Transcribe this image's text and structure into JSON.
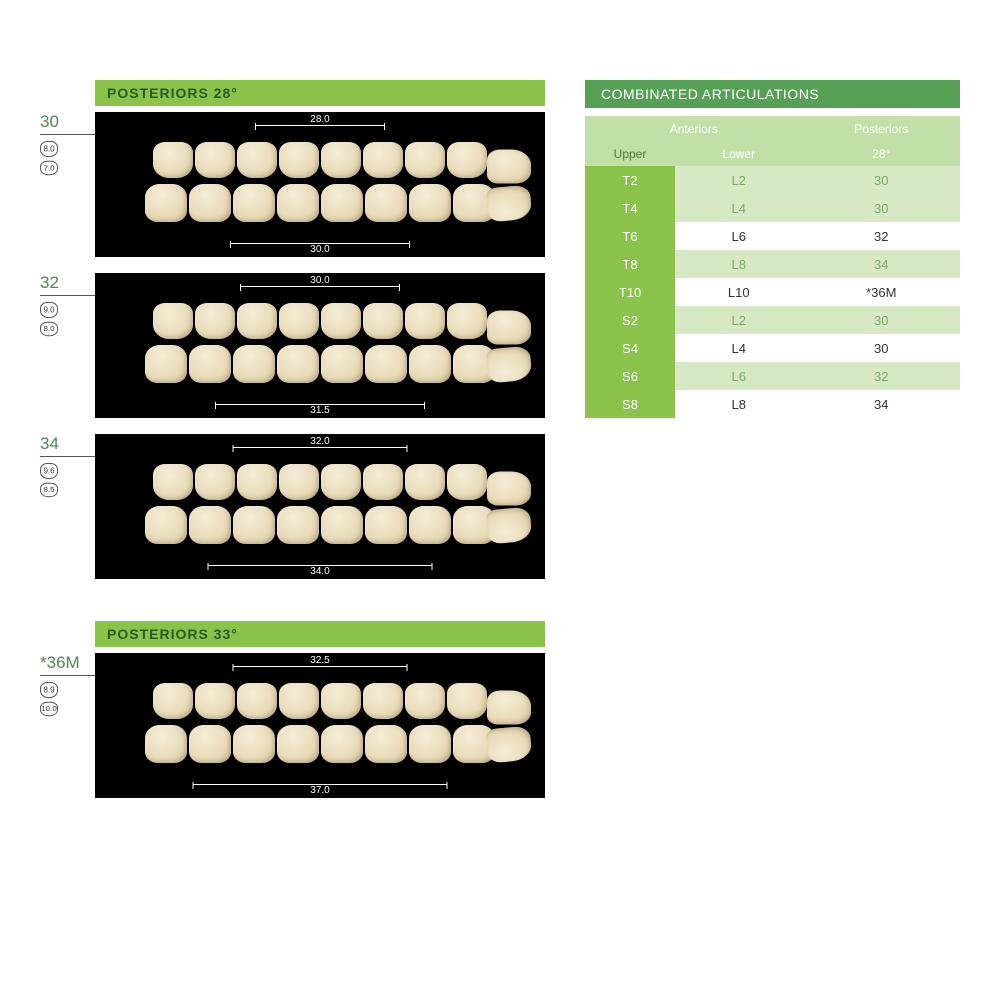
{
  "sections": [
    {
      "title": "POSTERIORS  28°"
    },
    {
      "title": "POSTERIORS  33°"
    }
  ],
  "panels": [
    {
      "id": "30",
      "dimA": "8.0",
      "dimB": "7.0",
      "measTop": "28.0",
      "measBottom": "30.0",
      "topWidth": 130,
      "bottomWidth": 180
    },
    {
      "id": "32",
      "dimA": "9.0",
      "dimB": "8.0",
      "measTop": "30.0",
      "measBottom": "31.5",
      "topWidth": 160,
      "bottomWidth": 210
    },
    {
      "id": "34",
      "dimA": "9.6",
      "dimB": "8.5",
      "measTop": "32.0",
      "measBottom": "34.0",
      "topWidth": 175,
      "bottomWidth": 225
    },
    {
      "id": "*36M",
      "dimA": "8.9",
      "dimB": "10.0",
      "measTop": "32.5",
      "measBottom": "37.0",
      "topWidth": 175,
      "bottomWidth": 255
    }
  ],
  "table": {
    "title": "COMBINATED ARTICULATIONS",
    "head1": "Anteriors",
    "head2": "Posteriors",
    "sub1": "Upper",
    "sub2": "Lower",
    "sub3": "28°",
    "rows": [
      {
        "upper": "T2",
        "lower": "L2",
        "post": "30",
        "shade": true
      },
      {
        "upper": "T4",
        "lower": "L4",
        "post": "30",
        "shade": true
      },
      {
        "upper": "T6",
        "lower": "L6",
        "post": "32",
        "shade": false
      },
      {
        "upper": "T8",
        "lower": "L8",
        "post": "34",
        "shade": true
      },
      {
        "upper": "T10",
        "lower": "L10",
        "post": "*36M",
        "shade": false
      },
      {
        "upper": "S2",
        "lower": "L2",
        "post": "30",
        "shade": true
      },
      {
        "upper": "S4",
        "lower": "L4",
        "post": "30",
        "shade": false
      },
      {
        "upper": "S6",
        "lower": "L6",
        "post": "32",
        "shade": true
      },
      {
        "upper": "S8",
        "lower": "L8",
        "post": "34",
        "shade": false
      }
    ]
  },
  "colors": {
    "headerGreen": "#8bc34a",
    "tableTitleGreen": "#55a055",
    "lightGreen": "#c0e0a8",
    "rowShade": "#d7e9c4"
  }
}
